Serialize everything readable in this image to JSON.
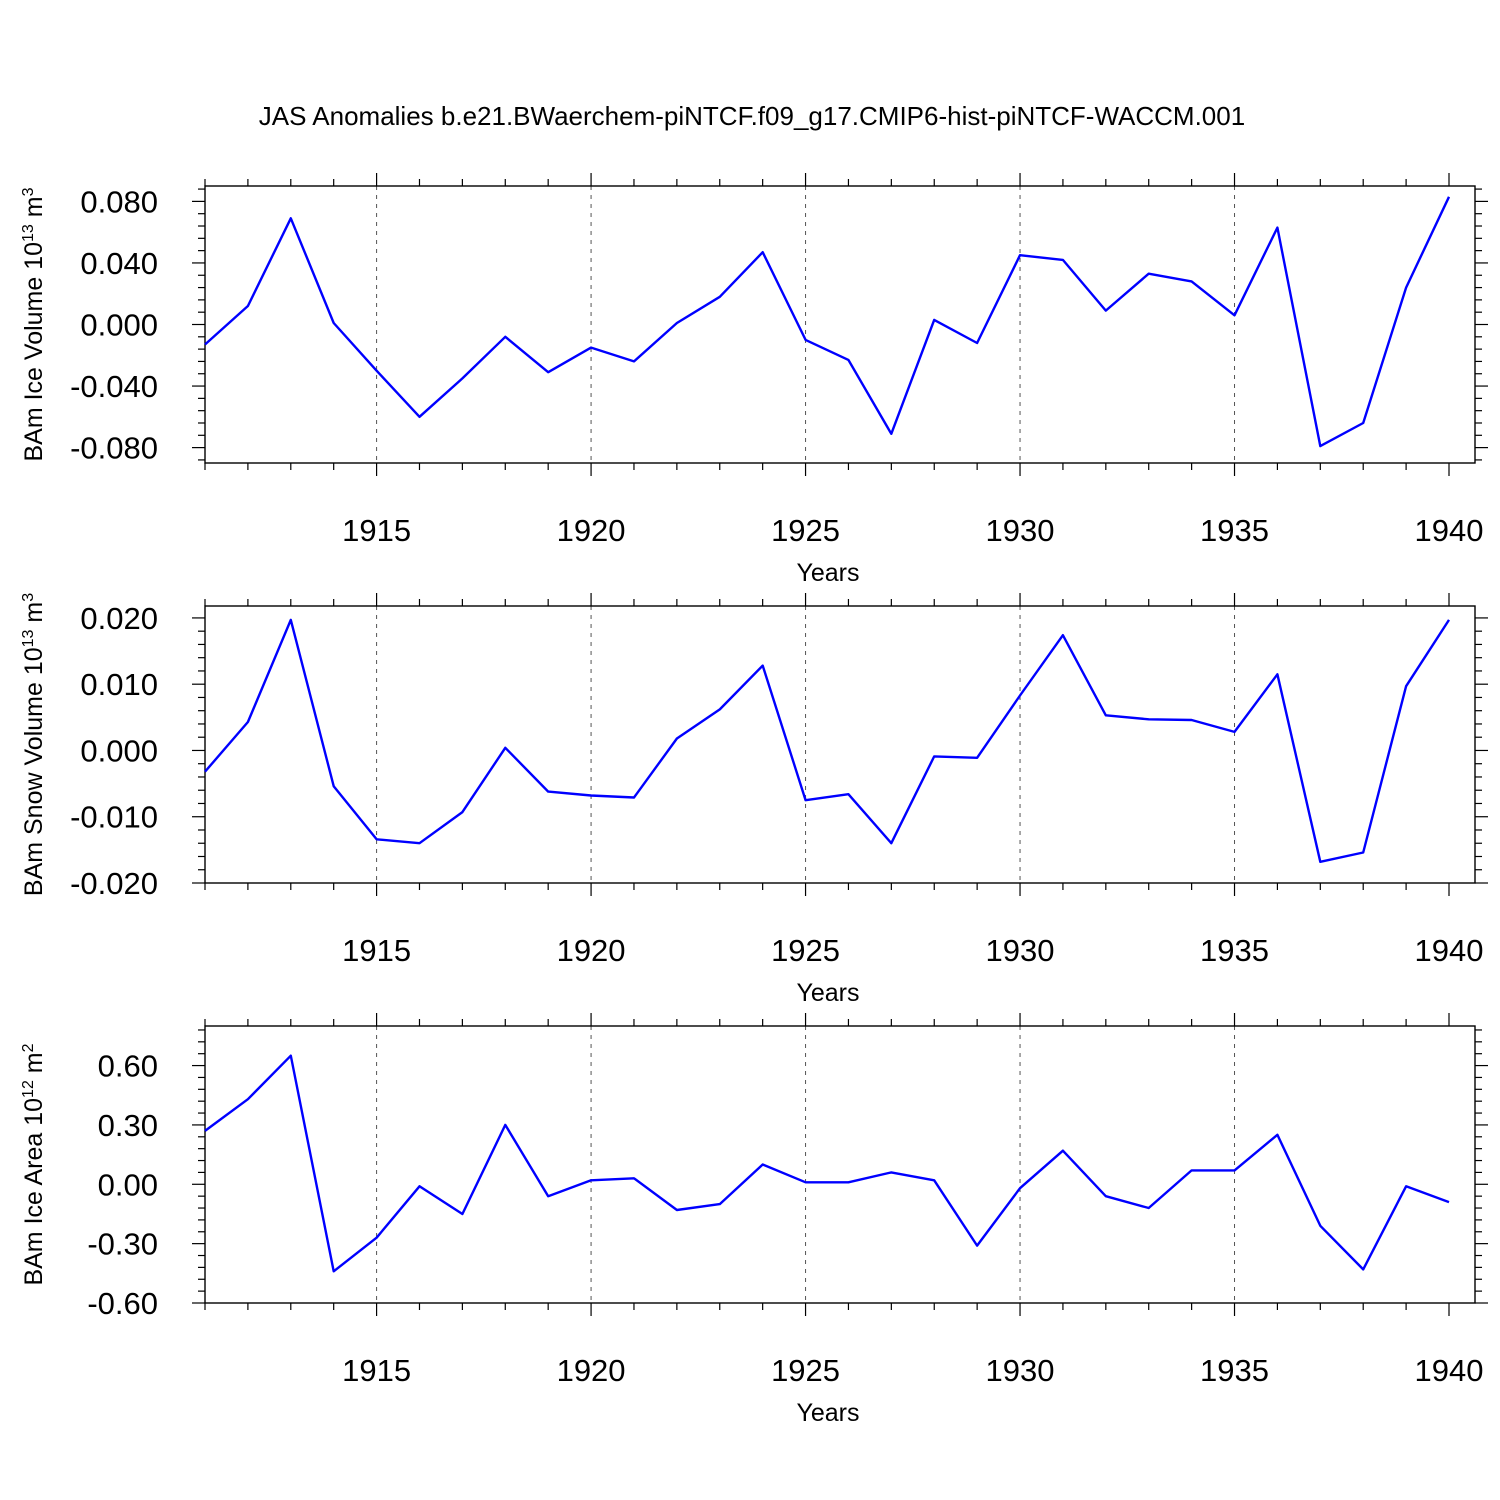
{
  "title": "JAS Anomalies b.e21.BWaerchem-piNTCF.f09_g17.CMIP6-hist-piNTCF-WACCM.001",
  "line_color": "#0000ff",
  "chart_data": [
    {
      "type": "line",
      "ylabel": "BAm Ice Volume 10",
      "ylabel_exp": "13",
      "ylabel_unit": " m",
      "ylabel_unit_exp": "3",
      "xlabel": "Years",
      "xlim": [
        1911,
        1940
      ],
      "ylim": [
        -0.09,
        0.09
      ],
      "x_ticks": [
        1915,
        1920,
        1925,
        1930,
        1935,
        1940
      ],
      "y_ticks": [
        -0.08,
        -0.04,
        0.0,
        0.04,
        0.08
      ],
      "y_tick_labels": [
        "-0.080",
        "-0.040",
        "0.000",
        "0.040",
        "0.080"
      ],
      "grid": "vertical dashed at x ticks",
      "series": [
        {
          "x": [
            1911,
            1912,
            1913,
            1914,
            1915,
            1916,
            1917,
            1918,
            1919,
            1920,
            1921,
            1922,
            1923,
            1924,
            1925,
            1926,
            1927,
            1928,
            1929,
            1930,
            1931,
            1932,
            1933,
            1934,
            1935,
            1936,
            1937,
            1938,
            1939,
            1940
          ],
          "values": [
            -0.013,
            0.012,
            0.069,
            0.001,
            -0.03,
            -0.06,
            -0.035,
            -0.008,
            -0.031,
            -0.015,
            -0.024,
            0.001,
            0.018,
            0.047,
            -0.01,
            -0.023,
            -0.071,
            0.003,
            -0.012,
            0.045,
            0.042,
            0.009,
            0.033,
            0.028,
            0.006,
            0.063,
            -0.079,
            -0.064,
            0.024,
            0.083
          ]
        }
      ]
    },
    {
      "type": "line",
      "ylabel": "BAm Snow Volume 10",
      "ylabel_exp": "13",
      "ylabel_unit": " m",
      "ylabel_unit_exp": "3",
      "xlabel": "Years",
      "xlim": [
        1911,
        1940
      ],
      "ylim": [
        -0.02,
        0.0218
      ],
      "x_ticks": [
        1915,
        1920,
        1925,
        1930,
        1935,
        1940
      ],
      "y_ticks": [
        -0.02,
        -0.01,
        0.0,
        0.01,
        0.02
      ],
      "y_tick_labels": [
        "-0.020",
        "-0.010",
        "0.000",
        "0.010",
        "0.020"
      ],
      "grid": "vertical dashed at x ticks",
      "series": [
        {
          "x": [
            1911,
            1912,
            1913,
            1914,
            1915,
            1916,
            1917,
            1918,
            1919,
            1920,
            1921,
            1922,
            1923,
            1924,
            1925,
            1926,
            1927,
            1928,
            1929,
            1930,
            1931,
            1932,
            1933,
            1934,
            1935,
            1936,
            1937,
            1938,
            1939,
            1940
          ],
          "values": [
            -0.0032,
            0.0043,
            0.0197,
            -0.0054,
            -0.0134,
            -0.014,
            -0.0093,
            0.0004,
            -0.0062,
            -0.0068,
            -0.0071,
            0.0018,
            0.0062,
            0.0128,
            -0.0075,
            -0.0066,
            -0.014,
            -0.0009,
            -0.0011,
            0.0083,
            0.0174,
            0.0053,
            0.0047,
            0.0046,
            0.0028,
            0.0115,
            -0.0168,
            -0.0154,
            0.0097,
            0.0197
          ]
        }
      ]
    },
    {
      "type": "line",
      "ylabel": "BAm Ice Area 10",
      "ylabel_exp": "12",
      "ylabel_unit": " m",
      "ylabel_unit_exp": "2",
      "xlabel": "Years",
      "xlim": [
        1911,
        1940
      ],
      "ylim": [
        -0.6,
        0.8
      ],
      "x_ticks": [
        1915,
        1920,
        1925,
        1930,
        1935,
        1940
      ],
      "y_ticks": [
        -0.6,
        -0.3,
        0.0,
        0.3,
        0.6
      ],
      "y_tick_labels": [
        "-0.60",
        "-0.30",
        "0.00",
        "0.30",
        "0.60"
      ],
      "grid": "vertical dashed at x ticks",
      "series": [
        {
          "x": [
            1911,
            1912,
            1913,
            1914,
            1915,
            1916,
            1917,
            1918,
            1919,
            1920,
            1921,
            1922,
            1923,
            1924,
            1925,
            1926,
            1927,
            1928,
            1929,
            1930,
            1931,
            1932,
            1933,
            1934,
            1935,
            1936,
            1937,
            1938,
            1939,
            1940
          ],
          "values": [
            0.27,
            0.43,
            0.65,
            -0.44,
            -0.27,
            -0.01,
            -0.15,
            0.3,
            -0.06,
            0.02,
            0.03,
            -0.13,
            -0.1,
            0.1,
            0.01,
            0.01,
            0.06,
            0.02,
            -0.31,
            -0.02,
            0.17,
            -0.06,
            -0.12,
            0.07,
            0.07,
            0.25,
            -0.21,
            -0.43,
            -0.01,
            -0.09
          ]
        }
      ]
    }
  ]
}
